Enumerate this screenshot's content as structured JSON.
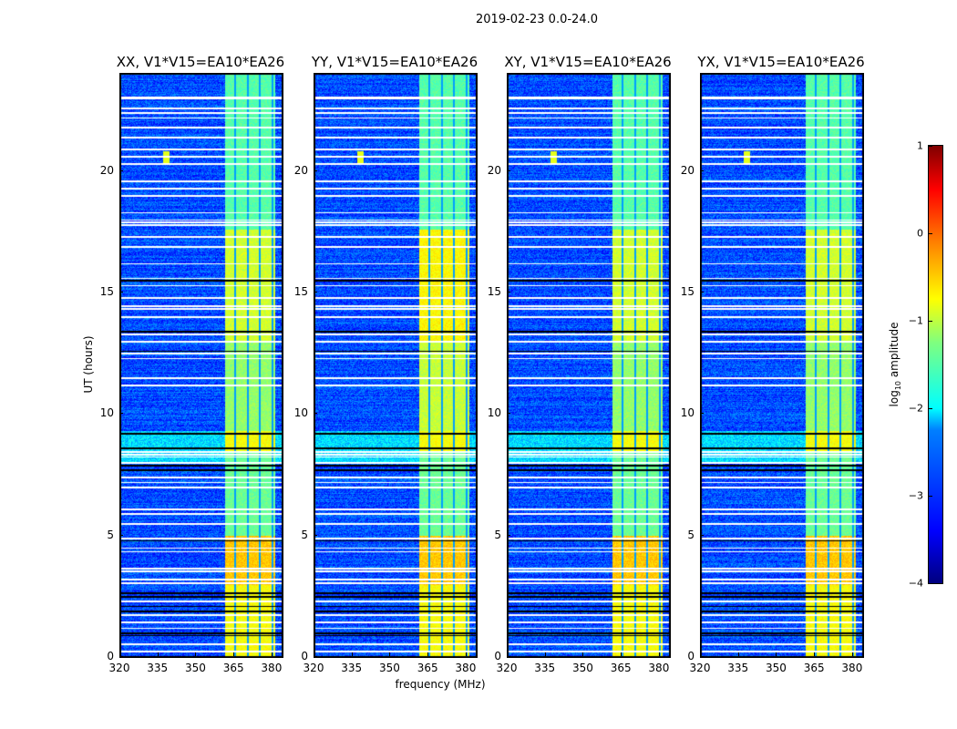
{
  "chart_data": {
    "type": "heatmap",
    "suptitle": "2019-02-23 0.0-24.0",
    "xlabel": "frequency (MHz)",
    "ylabel": "UT (hours)",
    "xlim": [
      320,
      384
    ],
    "ylim": [
      0,
      24
    ],
    "xticks": [
      "320",
      "335",
      "350",
      "365",
      "380"
    ],
    "yticks": [
      "0",
      "5",
      "10",
      "15",
      "20"
    ],
    "panels": [
      {
        "title": "XX, V1*V15=EA10*EA26",
        "signal_offset": 0.0,
        "band_mhz": [
          361,
          381
        ]
      },
      {
        "title": "YY, V1*V15=EA10*EA26",
        "signal_offset": 0.25,
        "band_mhz": [
          361,
          381
        ]
      },
      {
        "title": "XY, V1*V15=EA10*EA26",
        "signal_offset": 0.0,
        "band_mhz": [
          361,
          381
        ]
      },
      {
        "title": "YX, V1*V15=EA10*EA26",
        "signal_offset": 0.0,
        "band_mhz": [
          361,
          381
        ]
      }
    ],
    "signal_level_by_hours": [
      {
        "from": 0,
        "to": 3,
        "log_amp": -0.9
      },
      {
        "from": 3,
        "to": 5,
        "log_amp": -0.6
      },
      {
        "from": 5,
        "to": 8.5,
        "log_amp": -1.6
      },
      {
        "from": 8.5,
        "to": 9.3,
        "log_amp": -0.9
      },
      {
        "from": 9.3,
        "to": 13,
        "log_amp": -1.4
      },
      {
        "from": 13,
        "to": 17.6,
        "log_amp": -1.1
      },
      {
        "from": 17.6,
        "to": 24,
        "log_amp": -1.7
      }
    ],
    "background_log_amp": -3.0,
    "flagged_hours": [
      0.25,
      0.55,
      1.2,
      1.45,
      1.75,
      2.3,
      3.05,
      3.2,
      3.55,
      3.65,
      4.35,
      4.5,
      4.9,
      5.5,
      5.9,
      6.1,
      7.0,
      7.2,
      7.4,
      8.0,
      8.25,
      8.35,
      8.45,
      11.2,
      11.5,
      12.3,
      12.5,
      13.0,
      13.3,
      14.0,
      14.35,
      14.45,
      14.8,
      15.3,
      15.6,
      16.2,
      16.9,
      17.3,
      17.8,
      17.9,
      18.0,
      18.3,
      19.0,
      19.3,
      19.6,
      20.3,
      20.6,
      20.9,
      21.4,
      21.8,
      22.2,
      22.4,
      22.6,
      23.0,
      23.05
    ],
    "zero_hours": [
      0.9,
      1.0,
      1.9,
      2.1,
      2.5,
      2.65,
      4.8,
      7.7,
      7.9,
      8.6,
      9.2,
      12.6,
      13.4,
      15.5
    ],
    "colorbar": {
      "label": "log10 amplitude",
      "label_base": "log",
      "label_sub": "10",
      "label_rest": " amplitude",
      "ticks": [
        "1",
        "0",
        "−1",
        "−2",
        "−3",
        "−4"
      ],
      "range": [
        -4,
        1
      ],
      "colormap": "jet"
    }
  }
}
